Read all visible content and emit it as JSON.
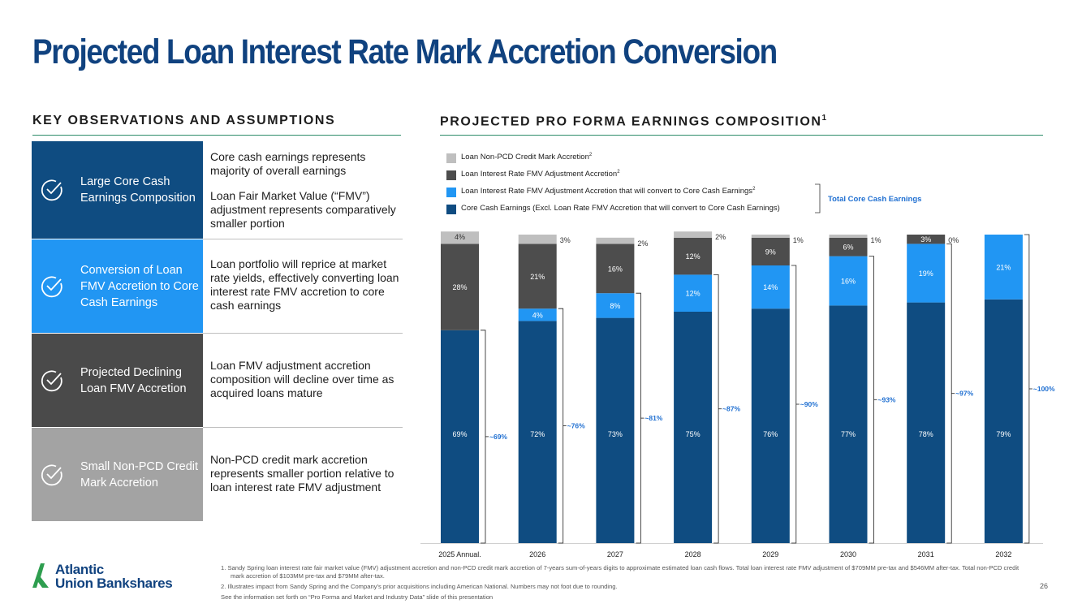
{
  "title": "Projected Loan Interest Rate Mark Accretion Conversion",
  "left_header": "KEY OBSERVATIONS AND ASSUMPTIONS",
  "right_header": "PROJECTED PRO FORMA EARNINGS COMPOSITION",
  "right_header_sup": "1",
  "observations": [
    {
      "label": "Large  Core Cash Earnings Composition",
      "panel_color": "#0f4c81",
      "text": [
        "Core cash earnings represents majority of overall earnings",
        "Loan Fair Market Value (“FMV”) adjustment represents comparatively smaller portion"
      ]
    },
    {
      "label": "Conversion of  Loan FMV  Accretion to Core Cash Earnings",
      "panel_color": "#2196f3",
      "text": [
        "Loan portfolio will reprice at market rate yields, effectively converting loan interest rate FMV accretion to core cash earnings"
      ]
    },
    {
      "label": "Projected Declining Loan FMV Accretion",
      "panel_color": "#4a4a4a",
      "text": [
        "Loan FMV adjustment accretion composition will decline over time as acquired loans mature"
      ]
    },
    {
      "label": "Small Non-PCD Credit Mark Accretion",
      "panel_color": "#a3a3a3",
      "text": [
        "Non-PCD credit mark accretion represents smaller portion relative to loan interest rate FMV adjustment"
      ]
    }
  ],
  "legend": [
    {
      "label": "Loan Non-PCD Credit Mark Accretion",
      "sup": "2",
      "color": "#bfbfbf"
    },
    {
      "label": "Loan Interest Rate FMV Adjustment Accretion",
      "sup": "2",
      "color": "#4d4d4d"
    },
    {
      "label": "Loan Interest Rate FMV Adjustment Accretion that will convert to Core Cash Earnings",
      "sup": "2",
      "color": "#2196f3"
    },
    {
      "label": "Core Cash Earnings (Excl. Loan Rate FMV Accretion that will convert to Core Cash Earnings)",
      "sup": "",
      "color": "#0f4c81"
    }
  ],
  "total_core_label": "Total Core Cash Earnings",
  "chart_data": {
    "type": "bar",
    "stacked": true,
    "categories": [
      "2025 Annual.",
      "2026",
      "2027",
      "2028",
      "2029",
      "2030",
      "2031",
      "2032"
    ],
    "ylim": [
      0,
      100
    ],
    "series": [
      {
        "name": "Core Cash Earnings (Excl. Loan Rate FMV Accretion that will convert to Core Cash Earnings)",
        "color": "#0f4c81",
        "values": [
          69,
          72,
          73,
          75,
          76,
          77,
          78,
          79
        ],
        "labels": [
          "69%",
          "72%",
          "73%",
          "75%",
          "76%",
          "77%",
          "78%",
          "79%"
        ]
      },
      {
        "name": "Loan Interest Rate FMV Adjustment Accretion that will convert to Core Cash Earnings",
        "color": "#2196f3",
        "values": [
          0,
          4,
          8,
          12,
          14,
          16,
          19,
          21
        ],
        "labels": [
          "",
          "4%",
          "8%",
          "12%",
          "14%",
          "16%",
          "19%",
          "21%"
        ]
      },
      {
        "name": "Loan Interest Rate FMV Adjustment Accretion",
        "color": "#4d4d4d",
        "values": [
          28,
          21,
          16,
          12,
          9,
          6,
          3,
          0
        ],
        "labels": [
          "28%",
          "21%",
          "16%",
          "12%",
          "9%",
          "6%",
          "3%",
          ""
        ]
      },
      {
        "name": "Loan Non-PCD Credit Mark Accretion",
        "color": "#bfbfbf",
        "values": [
          4,
          3,
          2,
          2,
          1,
          1,
          0,
          0
        ],
        "labels": [
          "4%",
          "3%",
          "2%",
          "2%",
          "1%",
          "1%",
          "0%",
          ""
        ]
      }
    ],
    "total_core_annotations": [
      "~69%",
      "~76%",
      "~81%",
      "~87%",
      "~90%",
      "~93%",
      "~97%",
      "~100%"
    ]
  },
  "logo": {
    "line1": "Atlantic",
    "line2": "Union Bankshares"
  },
  "footnotes": [
    "1. Sandy Spring loan interest rate fair market value (FMV) adjustment accretion and non-PCD credit mark accretion of 7-years sum-of-years digits to approximate estimated loan cash flows. Total loan interest rate FMV adjustment of $709MM pre-tax and $546MM after-tax. Total non-PCD credit mark accretion of $103MM pre-tax and $79MM after-tax.",
    "2. Illustrates impact from Sandy Spring and the Company’s prior acquisitions including American National.  Numbers may not foot due to rounding.",
    "See the information set forth on “Pro Forma and Market and Industry Data” slide of this presentation"
  ],
  "page_number": "26"
}
